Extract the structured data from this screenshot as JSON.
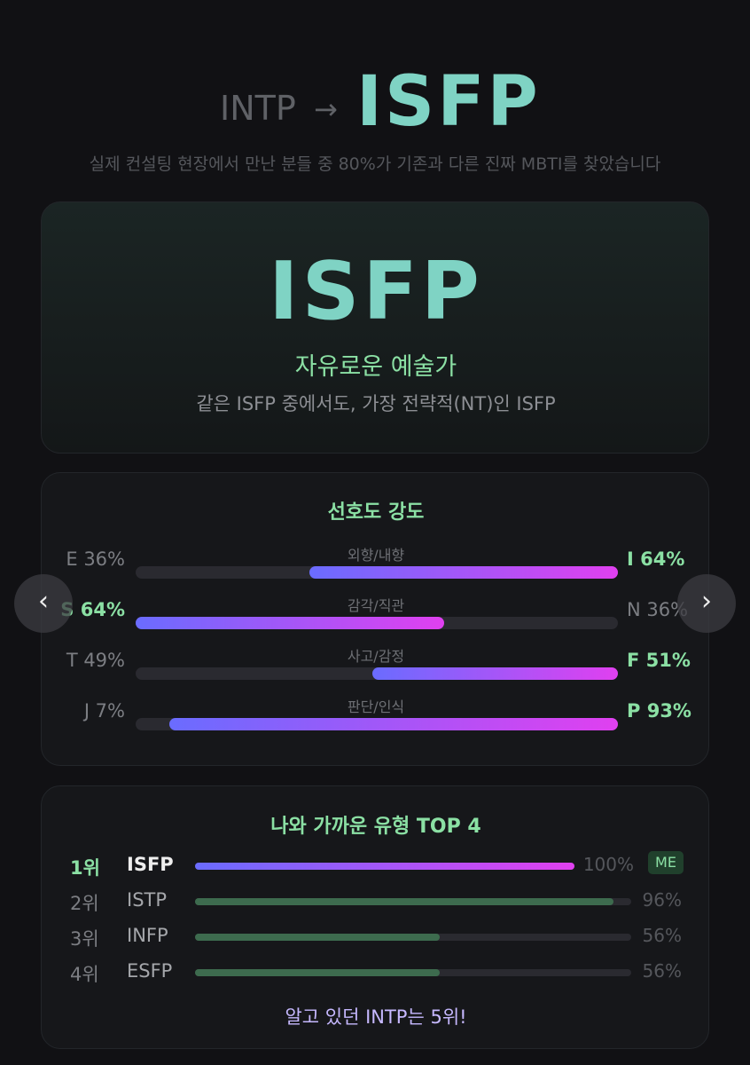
{
  "header": {
    "from": "INTP",
    "arrow": "→",
    "to": "ISFP",
    "subtitle": "실제 컨설팅 현장에서 만난 분들 중 80%가 기존과 다른 진짜 MBTI를 찾았습니다"
  },
  "result": {
    "type": "ISFP",
    "nickname": "자유로운 예술가",
    "description": "같은 ISFP 중에서도, 가장 전략적(NT)인 ISFP"
  },
  "preference": {
    "title": "선호도 강도",
    "rows": [
      {
        "axis": "외향/내향",
        "left": {
          "value": 36,
          "label": "E 36%"
        },
        "right": {
          "value": 64,
          "label": "I 64%"
        },
        "dominant": "right"
      },
      {
        "axis": "감각/직관",
        "left": {
          "value": 64,
          "label": "S 64%"
        },
        "right": {
          "value": 36,
          "label": "N 36%"
        },
        "dominant": "left"
      },
      {
        "axis": "사고/감정",
        "left": {
          "value": 49,
          "label": "T 49%"
        },
        "right": {
          "value": 51,
          "label": "F 51%"
        },
        "dominant": "right"
      },
      {
        "axis": "판단/인식",
        "left": {
          "value": 7,
          "label": "J 7%"
        },
        "right": {
          "value": 93,
          "label": "P 93%"
        },
        "dominant": "right"
      }
    ]
  },
  "nav": {
    "prev": "‹",
    "next": "›"
  },
  "closest": {
    "title": "나와 가까운 유형 TOP 4",
    "rows": [
      {
        "rank": "1위",
        "type": "ISFP",
        "match": {
          "value": 100,
          "label": "100%"
        },
        "badge": "ME"
      },
      {
        "rank": "2위",
        "type": "ISTP",
        "match": {
          "value": 96,
          "label": "96%"
        }
      },
      {
        "rank": "3위",
        "type": "INFP",
        "match": {
          "value": 56,
          "label": "56%"
        }
      },
      {
        "rank": "4위",
        "type": "ESFP",
        "match": {
          "value": 56,
          "label": "56%"
        }
      }
    ],
    "footer": "알고 있던 INTP는 5위!"
  }
}
